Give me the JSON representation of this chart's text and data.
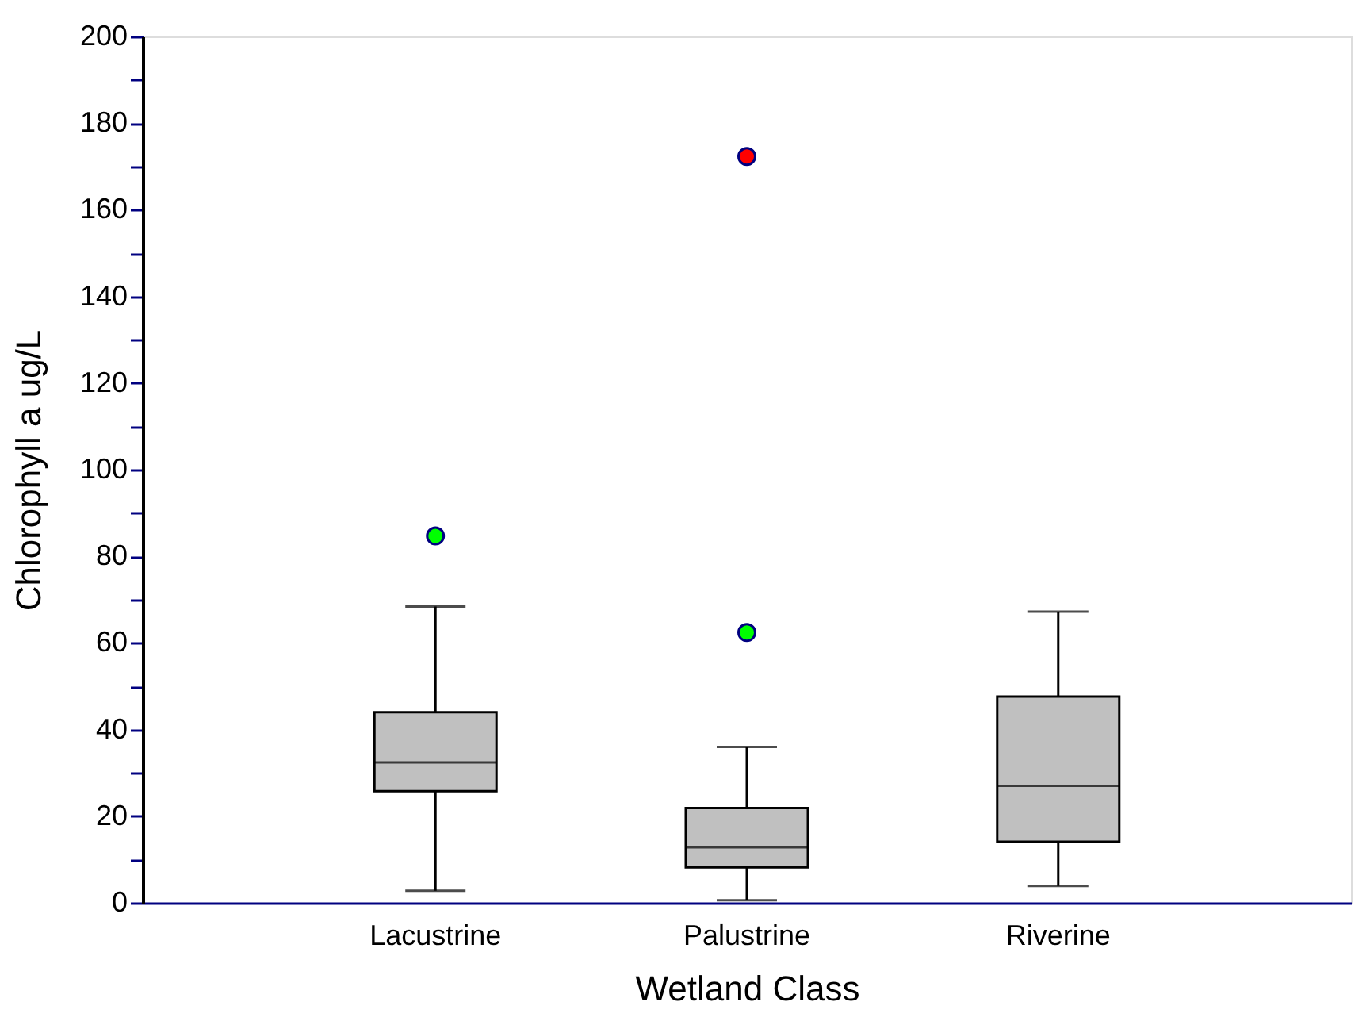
{
  "chart_data": {
    "type": "box",
    "xlabel": "Wetland Class",
    "ylabel": "Chlorophyll a ug/L",
    "categories": [
      "Lacustrine",
      "Palustrine",
      "Riverine"
    ],
    "boxes": [
      {
        "low": 2.8,
        "q1": 25.8,
        "median": 32.4,
        "q3": 44,
        "high": 68.4
      },
      {
        "low": 0.6,
        "q1": 8.2,
        "median": 12.8,
        "q3": 21.9,
        "high": 36
      },
      {
        "low": 3.9,
        "q1": 14.1,
        "median": 27,
        "q3": 47.6,
        "high": 67.2
      }
    ],
    "series": [
      {
        "type": "scatter",
        "color": "#00ff00",
        "x": [
          "Lacustrine",
          "Palustrine"
        ],
        "values": [
          84.7,
          62.4
        ]
      },
      {
        "type": "scatter",
        "color": "#ff0000",
        "x": [
          "Palustrine"
        ],
        "values": [
          172.3
        ]
      }
    ],
    "ylim": [
      0,
      200
    ],
    "yticks": [
      0,
      {
        "value": 10,
        "label": null
      },
      20,
      {
        "value": 30,
        "label": null
      },
      40,
      {
        "value": 50,
        "label": null
      },
      60,
      {
        "value": 70,
        "label": null
      },
      80,
      {
        "value": 90,
        "label": null
      },
      100,
      {
        "value": 110,
        "label": null
      },
      120,
      {
        "value": 130,
        "label": null
      },
      140,
      {
        "value": 150,
        "label": null
      },
      160,
      {
        "value": 170,
        "label": null
      },
      180,
      {
        "value": 190,
        "label": null
      },
      200
    ],
    "grid": false,
    "marker": "circle"
  }
}
